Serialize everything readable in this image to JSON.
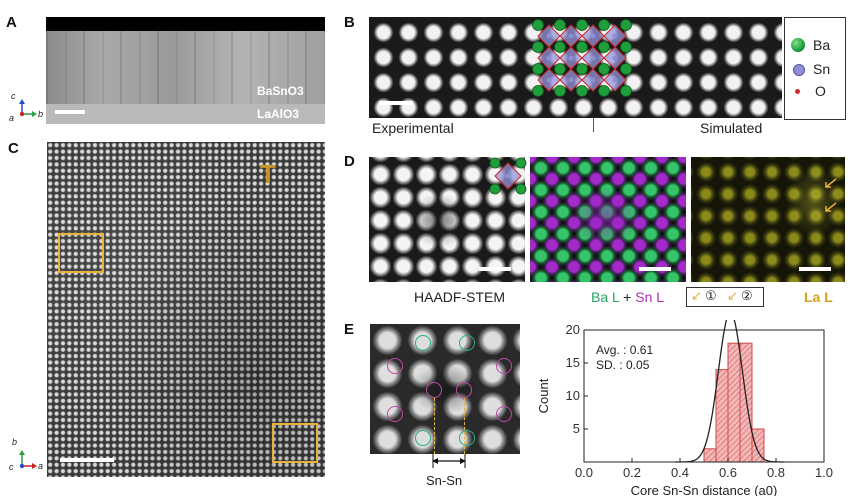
{
  "panels": {
    "a": {
      "letter": "A",
      "layer_top": "BaSnO3",
      "layer_bottom": "LaAlO3",
      "axis_c": "c",
      "axis_a": "a",
      "axis_b": "b"
    },
    "b": {
      "letter": "B",
      "label_left": "Experimental",
      "label_right": "Simulated",
      "legend": [
        {
          "label": "Ba",
          "color": "#1f9e3a"
        },
        {
          "label": "Sn",
          "color": "#8f8fd8"
        },
        {
          "label": "O",
          "color": "#d02a2a"
        }
      ]
    },
    "c": {
      "letter": "C",
      "marker": "T",
      "axis_b": "b",
      "axis_c": "c",
      "axis_a": "a"
    },
    "d": {
      "letter": "D",
      "label_stem": "HAADF-STEM",
      "label_ba": "Ba L",
      "label_plus": "+",
      "label_sn": "Sn L",
      "label_la": "La L",
      "arrow_1": "①",
      "arrow_2": "②"
    },
    "e": {
      "letter": "E",
      "sn_label": "Sn-Sn"
    }
  },
  "colors": {
    "orange_box": "#e8b23a",
    "green": "#26b07a",
    "magenta": "#c24aa8",
    "hist_fill": "#f2b8b8",
    "hist_edge": "#d04848"
  },
  "chart_data": {
    "type": "bar",
    "xlabel": "Core Sn-Sn distance (a0)",
    "ylabel": "Count",
    "xlim": [
      0.0,
      1.0
    ],
    "ylim": [
      0,
      20
    ],
    "xticks": [
      "0.0",
      "0.2",
      "0.4",
      "0.6",
      "0.8",
      "1.0"
    ],
    "yticks": [
      "5",
      "10",
      "15",
      "20"
    ],
    "bin_width": 0.05,
    "bins": [
      0.5,
      0.55,
      0.6,
      0.65,
      0.7
    ],
    "values": [
      2,
      14,
      18,
      18,
      5
    ],
    "annotation_avg": "Avg. : 0.61",
    "annotation_sd": "SD.  : 0.05",
    "fit": {
      "mean": 0.61,
      "sd": 0.05
    }
  }
}
